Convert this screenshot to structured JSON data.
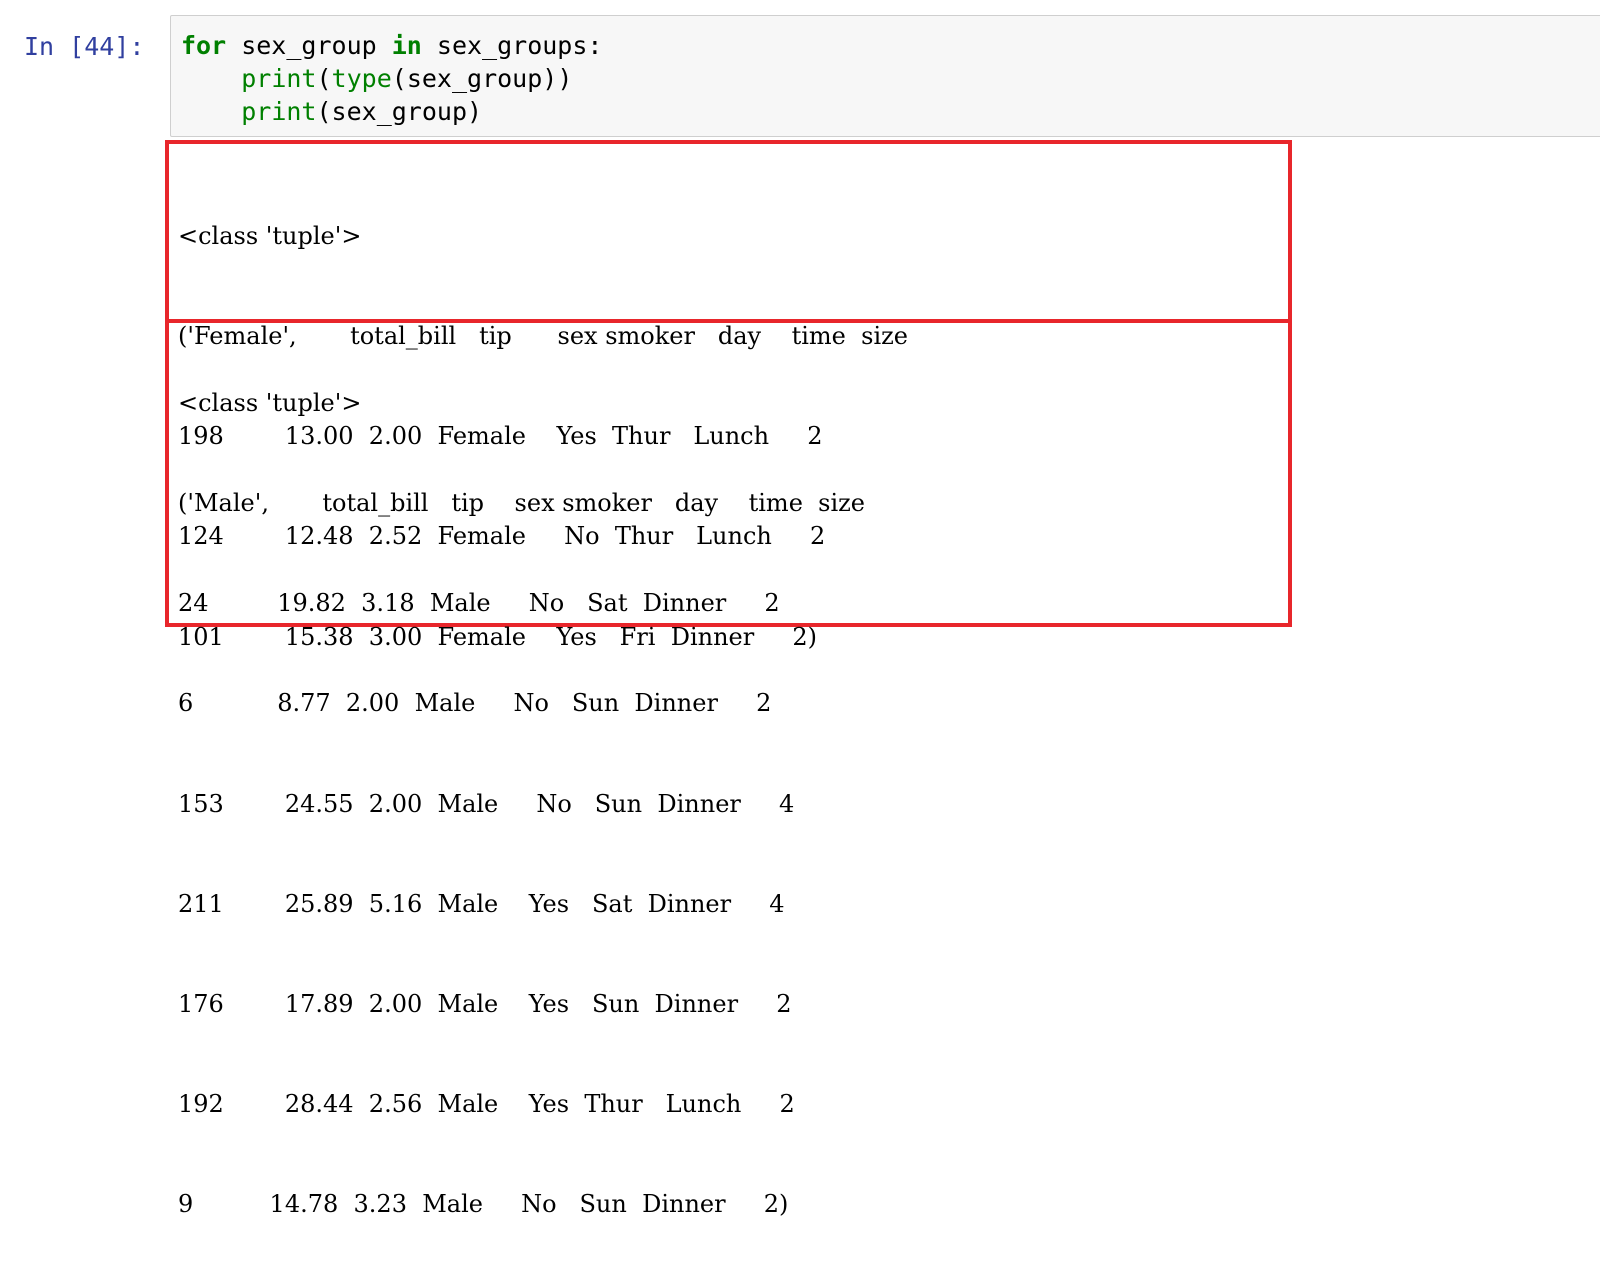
{
  "cell": {
    "prompt": "In [44]:",
    "code": {
      "line1": {
        "kw_for": "for",
        "var1": " sex_group ",
        "kw_in": "in",
        "rest": " sex_groups:"
      },
      "line2": {
        "indent": "    ",
        "fn_print": "print",
        "open": "(",
        "fn_type": "type",
        "rest": "(sex_group))"
      },
      "line3": {
        "indent": "    ",
        "fn_print": "print",
        "rest": "(sex_group)"
      }
    }
  },
  "output": {
    "female_group": {
      "lines": [
        "<class 'tuple'>",
        "('Female',       total_bill   tip      sex smoker   day    time  size",
        "198        13.00  2.00  Female    Yes  Thur   Lunch     2",
        "124        12.48  2.52  Female     No  Thur   Lunch     2",
        "101        15.38  3.00  Female    Yes   Fri  Dinner     2)"
      ]
    },
    "male_group": {
      "lines": [
        "<class 'tuple'>",
        "('Male',       total_bill   tip    sex smoker   day    time  size",
        "24         19.82  3.18  Male     No   Sat  Dinner     2",
        "6           8.77  2.00  Male     No   Sun  Dinner     2",
        "153        24.55  2.00  Male     No   Sun  Dinner     4",
        "211        25.89  5.16  Male    Yes   Sat  Dinner     4",
        "176        17.89  2.00  Male    Yes   Sun  Dinner     2",
        "192        28.44  2.56  Male    Yes  Thur   Lunch     2",
        "9          14.78  3.23  Male     No   Sun  Dinner     2)"
      ]
    }
  },
  "colors": {
    "prompt": "#303f9f",
    "keyword": "#008000",
    "highlight_border": "#e8262b",
    "input_background": "#f7f7f7"
  }
}
